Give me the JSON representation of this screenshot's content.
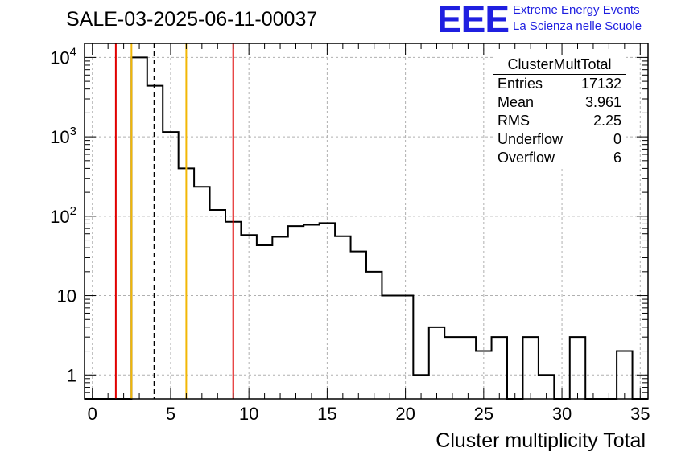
{
  "header": {
    "run_title": "SALE-03-2025-06-11-00037",
    "logo_text": "EEE",
    "org_line1": "Extreme Energy Events",
    "org_line2": "La Scienza nelle Scuole"
  },
  "stats_box": {
    "title": "ClusterMultTotal",
    "rows": [
      {
        "label": "Entries",
        "value": "17132"
      },
      {
        "label": "Mean",
        "value": "3.961"
      },
      {
        "label": "RMS",
        "value": "2.25"
      },
      {
        "label": "Underflow",
        "value": "0"
      },
      {
        "label": "Overflow",
        "value": "6"
      }
    ]
  },
  "colors": {
    "histogram": "#000000",
    "red_line": "#e00000",
    "yellow_line": "#f2b705",
    "grid": "#b0b0b0",
    "logo": "#1f1fe0"
  },
  "chart_data": {
    "type": "bar",
    "style": "step-histogram",
    "title": "SALE-03-2025-06-11-00037",
    "xlabel": "Cluster multiplicity Total",
    "ylabel": "",
    "xlim": [
      -0.5,
      35.5
    ],
    "ylim": [
      0.5,
      15000
    ],
    "yscale": "log",
    "grid": true,
    "x_ticks": [
      0,
      5,
      10,
      15,
      20,
      25,
      30,
      35
    ],
    "x_tick_labels": [
      "0",
      "5",
      "10",
      "15",
      "20",
      "25",
      "30",
      "35"
    ],
    "y_ticks": [
      1,
      10,
      100,
      1000,
      10000
    ],
    "y_tick_labels": [
      "1",
      "10",
      "10^2",
      "10^3",
      "10^4"
    ],
    "bin_width": 1,
    "bin_centers": [
      0,
      1,
      2,
      3,
      4,
      5,
      6,
      7,
      8,
      9,
      10,
      11,
      12,
      13,
      14,
      15,
      16,
      17,
      18,
      19,
      20,
      21,
      22,
      23,
      24,
      25,
      26,
      27,
      28,
      29,
      30,
      31,
      32,
      33,
      34,
      35
    ],
    "values": [
      0,
      0,
      0,
      10000,
      4400,
      1150,
      400,
      235,
      120,
      85,
      58,
      43,
      55,
      75,
      78,
      82,
      56,
      36,
      20,
      10,
      10,
      1,
      4,
      3,
      3,
      2,
      3,
      0,
      3,
      1,
      0,
      3,
      0,
      0,
      2,
      0
    ],
    "vertical_lines": [
      {
        "x": 1.5,
        "color": "red",
        "style": "solid"
      },
      {
        "x": 2.5,
        "color": "yellow",
        "style": "solid"
      },
      {
        "x": 3.961,
        "color": "black",
        "style": "dashed"
      },
      {
        "x": 6.0,
        "color": "yellow",
        "style": "solid"
      },
      {
        "x": 9.0,
        "color": "red",
        "style": "solid"
      }
    ]
  }
}
